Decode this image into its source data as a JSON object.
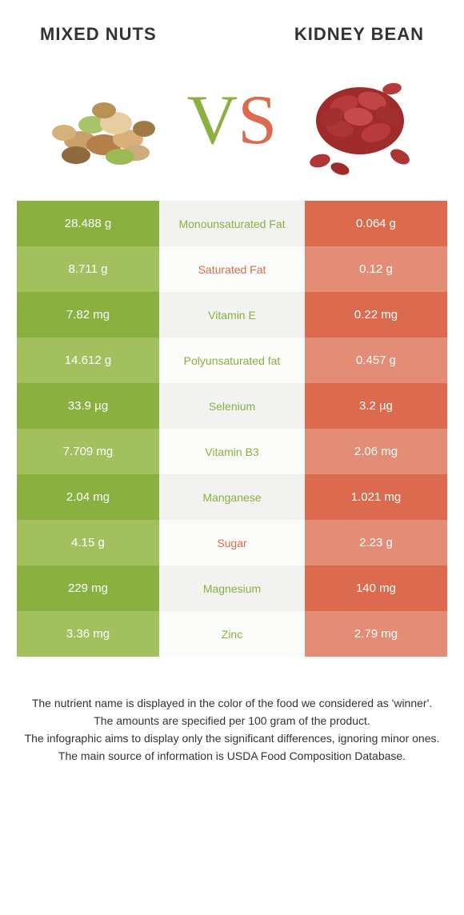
{
  "titles": {
    "left": "MIXED NUTS",
    "right": "KIDNEY BEAN"
  },
  "vs": {
    "v": "V",
    "s": "S"
  },
  "colors": {
    "left_food": {
      "dark": "#8ab040",
      "light": "#a3c05e",
      "text": "#8cb040"
    },
    "right_food": {
      "dark": "#db6a4e",
      "light": "#e38c76",
      "text": "#db6a4e"
    },
    "mid_dark": "#f2f2f0",
    "mid_light": "#fbfbfa",
    "page_bg": "#ffffff",
    "body_text": "#333333"
  },
  "rows": [
    {
      "left": "28.488 g",
      "label": "Monounsaturated Fat",
      "right": "0.064 g",
      "winner": "left"
    },
    {
      "left": "8.711 g",
      "label": "Saturated Fat",
      "right": "0.12 g",
      "winner": "right"
    },
    {
      "left": "7.82 mg",
      "label": "Vitamin E",
      "right": "0.22 mg",
      "winner": "left"
    },
    {
      "left": "14.612 g",
      "label": "Polyunsaturated fat",
      "right": "0.457 g",
      "winner": "left"
    },
    {
      "left": "33.9 µg",
      "label": "Selenium",
      "right": "3.2 µg",
      "winner": "left"
    },
    {
      "left": "7.709 mg",
      "label": "Vitamin B3",
      "right": "2.06 mg",
      "winner": "left"
    },
    {
      "left": "2.04 mg",
      "label": "Manganese",
      "right": "1.021 mg",
      "winner": "left"
    },
    {
      "left": "4.15 g",
      "label": "Sugar",
      "right": "2.23 g",
      "winner": "right"
    },
    {
      "left": "229 mg",
      "label": "Magnesium",
      "right": "140 mg",
      "winner": "left"
    },
    {
      "left": "3.36 mg",
      "label": "Zinc",
      "right": "2.79 mg",
      "winner": "left"
    }
  ],
  "footer": [
    "The nutrient name is displayed in the color of the food we considered as 'winner'.",
    "The amounts are specified per 100 gram of the product.",
    "The infographic aims to display only the significant differences, ignoring minor ones.",
    "The main source of information is USDA Food Composition Database."
  ],
  "fonts": {
    "title_size": 22,
    "cell_size": 15,
    "label_size": 14,
    "footer_size": 14,
    "vs_size": 88
  }
}
